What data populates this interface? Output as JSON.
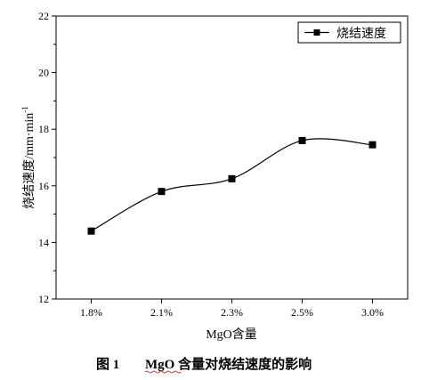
{
  "chart_data": {
    "type": "line",
    "title": "",
    "xlabel": "MgO含量",
    "ylabel": "烧结速度/mm·min",
    "ylabel_superscript": "-1",
    "categories": [
      "1.8%",
      "2.1%",
      "2.3%",
      "2.5%",
      "3.0%"
    ],
    "series": [
      {
        "name": "烧结速度",
        "values": [
          14.4,
          15.8,
          16.25,
          17.6,
          17.45
        ],
        "color": "#000000",
        "marker": "square",
        "smooth": true
      }
    ],
    "ylim": [
      12,
      22
    ],
    "yticks": [
      12,
      14,
      16,
      18,
      20,
      22
    ],
    "grid": false,
    "legend": "top-right"
  },
  "caption": {
    "figure_no": "图 1",
    "text": "MgO 含量对烧结速度的影响"
  }
}
